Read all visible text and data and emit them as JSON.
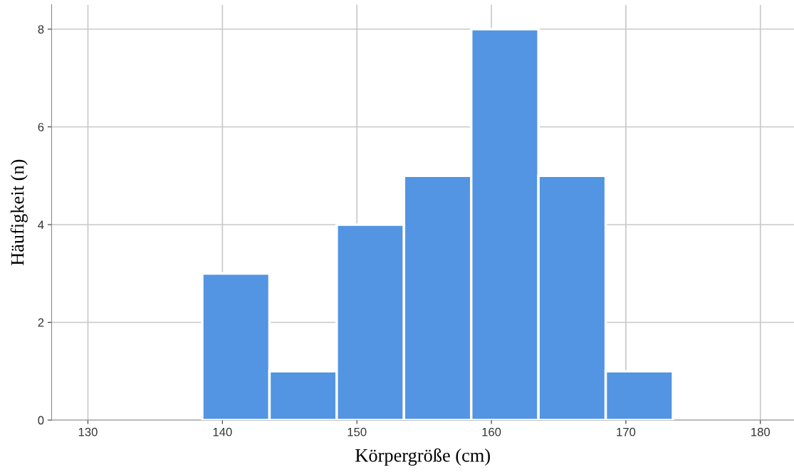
{
  "chart_data": {
    "type": "histogram",
    "xlabel": "Körpergröße (cm)",
    "ylabel": "Häufigkeit (n)",
    "bins": [
      138.5,
      143.5,
      148.5,
      153.5,
      158.5,
      163.5,
      168.5,
      173.5
    ],
    "values": [
      3,
      1,
      4,
      5,
      8,
      5,
      1
    ],
    "color": "#5394e3",
    "xlim": [
      127.3,
      182.5
    ],
    "xticks": [
      130,
      140,
      150,
      160,
      170,
      180
    ],
    "ylim": [
      0,
      8.5
    ],
    "yticks": [
      0,
      2,
      4,
      6,
      8
    ],
    "grid": true
  }
}
